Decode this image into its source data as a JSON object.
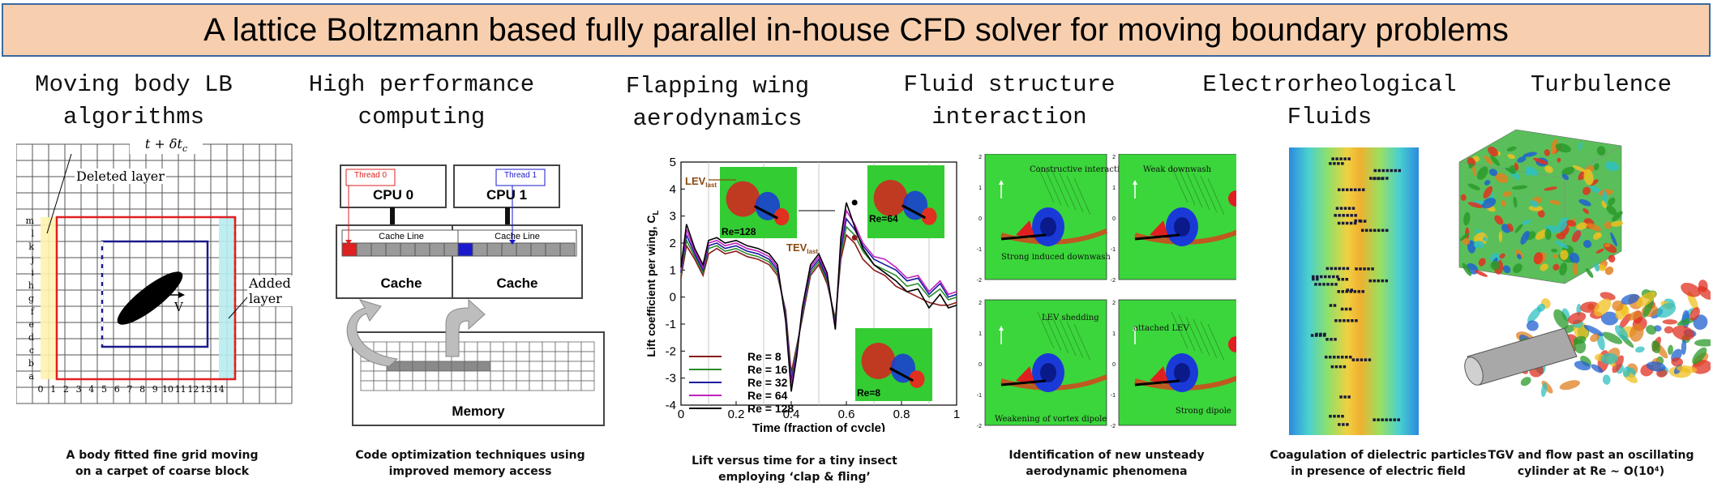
{
  "banner": {
    "title": "A lattice Boltzmann based fully parallel in-house CFD solver for moving boundary problems"
  },
  "panels": [
    {
      "title_lines": [
        "Moving body LB",
        "algorithms"
      ],
      "caption_lines": [
        "A body fitted fine grid moving",
        "on a carpet of coarse block"
      ],
      "figure": {
        "time_label": "t + δt",
        "time_sub": "c",
        "deleted_label": "Deleted layer",
        "added_label": "Added layer",
        "velocity_label": "V",
        "x_ticks": [
          "0",
          "1",
          "2",
          "3",
          "4",
          "5",
          "6",
          "7",
          "8",
          "9",
          "10",
          "11",
          "12",
          "13",
          "14"
        ],
        "y_ticks": [
          "m",
          "l",
          "k",
          "j",
          "i",
          "h",
          "g",
          "f",
          "e",
          "d",
          "c",
          "b",
          "a"
        ]
      }
    },
    {
      "title_lines": [
        "High performance",
        "computing"
      ],
      "caption_lines": [
        "Code optimization techniques using",
        "improved memory access"
      ],
      "figure": {
        "thread0": "Thread 0",
        "thread1": "Thread 1",
        "cpu0": "CPU 0",
        "cpu1": "CPU 1",
        "cache_line": "Cache Line",
        "cache": "Cache",
        "memory": "Memory",
        "thread0_color": "#e02020",
        "thread1_color": "#1a1acc"
      }
    },
    {
      "title_lines": [
        "Flapping wing",
        "aerodynamics"
      ],
      "caption_lines": [
        "Lift versus time for a tiny insect",
        "employing ‘clap & fling’"
      ],
      "figure": {
        "lev_label": "LEV",
        "lev_sub": "last",
        "tev_label": "TEV",
        "tev_sub": "last",
        "inset_labels": [
          "Re=128",
          "Re=64",
          "Re=8"
        ]
      }
    },
    {
      "title_lines": [
        "Fluid structure",
        "interaction"
      ],
      "caption_lines": [
        "Identification of new unsteady",
        "aerodynamic phenomena"
      ],
      "figure": {
        "labels": [
          "Constructive interaction at TE",
          "Strong induced downwash",
          "Weak downwash",
          "LEV shedding",
          "Weakening of vortex dipole",
          "attached LEV",
          "Strong dipole"
        ],
        "axis_ticks": [
          "2",
          "1",
          "0",
          "-1",
          "-2"
        ]
      }
    },
    {
      "title_lines": [
        "Electrorheological",
        "Fluids"
      ],
      "caption_lines": [
        "Coagulation of dielectric particles",
        "in presence of electric field"
      ]
    },
    {
      "title_lines": [
        "Turbulence"
      ],
      "caption_lines": [
        "TGV and flow past an oscillating",
        "cylinder at Re ~ O(10⁴)"
      ]
    }
  ],
  "chart_data": {
    "type": "line",
    "title": "",
    "xlabel": "Time (fraction of cycle)",
    "ylabel": "Lift coefficient per wing, C",
    "ylabel_sub": "L",
    "xlim": [
      0,
      1
    ],
    "ylim": [
      -4,
      5
    ],
    "x_ticks": [
      0,
      0.2,
      0.4,
      0.6,
      0.8,
      1
    ],
    "y_ticks": [
      -4,
      -3,
      -2,
      -1,
      0,
      1,
      2,
      3,
      4,
      5
    ],
    "x": [
      0,
      0.02,
      0.05,
      0.08,
      0.1,
      0.13,
      0.16,
      0.2,
      0.24,
      0.28,
      0.32,
      0.35,
      0.38,
      0.4,
      0.42,
      0.44,
      0.47,
      0.5,
      0.53,
      0.56,
      0.58,
      0.6,
      0.63,
      0.66,
      0.7,
      0.74,
      0.78,
      0.82,
      0.86,
      0.9,
      0.94,
      0.97,
      1
    ],
    "series": [
      {
        "name": "Re = 8",
        "color": "#8b1a1a",
        "values": [
          0.7,
          1.9,
          1.4,
          0.8,
          1.6,
          1.8,
          1.6,
          1.7,
          1.5,
          1.4,
          1.2,
          0.8,
          -0.5,
          -2.8,
          -1.8,
          -0.8,
          0.8,
          1.2,
          0.5,
          -0.8,
          1.4,
          2.3,
          2.0,
          1.4,
          1.0,
          0.8,
          0.4,
          0.2,
          0.0,
          -0.2,
          -0.3,
          -0.3,
          -0.2
        ]
      },
      {
        "name": "Re = 16",
        "color": "#2a8a2a",
        "values": [
          0.8,
          2.1,
          1.5,
          0.9,
          1.8,
          1.9,
          1.7,
          1.8,
          1.6,
          1.5,
          1.3,
          0.9,
          -0.6,
          -3.0,
          -1.9,
          -0.7,
          0.9,
          1.3,
          0.6,
          -0.9,
          1.6,
          2.6,
          2.3,
          1.7,
          1.2,
          1.0,
          0.8,
          0.4,
          0.5,
          0.0,
          0.3,
          -0.1,
          0.0
        ]
      },
      {
        "name": "Re = 32",
        "color": "#1a1aa0",
        "values": [
          0.9,
          2.3,
          1.6,
          1.0,
          1.9,
          2.0,
          1.8,
          1.9,
          1.7,
          1.6,
          1.4,
          1.0,
          -0.7,
          -3.1,
          -2.0,
          -0.6,
          1.0,
          1.4,
          0.7,
          -1.0,
          1.8,
          2.9,
          2.5,
          1.9,
          1.4,
          1.2,
          1.0,
          0.6,
          0.7,
          0.1,
          0.5,
          0.0,
          0.1
        ]
      },
      {
        "name": "Re = 64",
        "color": "#c020c0",
        "values": [
          1.0,
          2.5,
          1.7,
          1.1,
          2.0,
          2.1,
          1.9,
          2.0,
          1.8,
          1.7,
          1.5,
          1.1,
          -0.8,
          -3.3,
          -2.1,
          -0.5,
          1.1,
          1.5,
          0.8,
          -1.1,
          2.0,
          3.2,
          2.7,
          2.0,
          1.5,
          1.4,
          1.1,
          0.7,
          0.8,
          0.2,
          0.6,
          0.1,
          0.2
        ]
      },
      {
        "name": "Re = 128",
        "color": "#000000",
        "values": [
          1.1,
          2.7,
          1.8,
          1.2,
          2.1,
          2.2,
          2.0,
          2.1,
          1.9,
          1.8,
          1.6,
          1.2,
          -0.9,
          -3.5,
          -2.2,
          -0.4,
          1.2,
          1.6,
          0.9,
          -1.2,
          2.2,
          3.5,
          2.6,
          1.8,
          1.2,
          0.9,
          0.6,
          0.2,
          0.3,
          -0.4,
          0.1,
          -0.4,
          -0.3
        ]
      }
    ],
    "legend_position": "bottom-left"
  }
}
